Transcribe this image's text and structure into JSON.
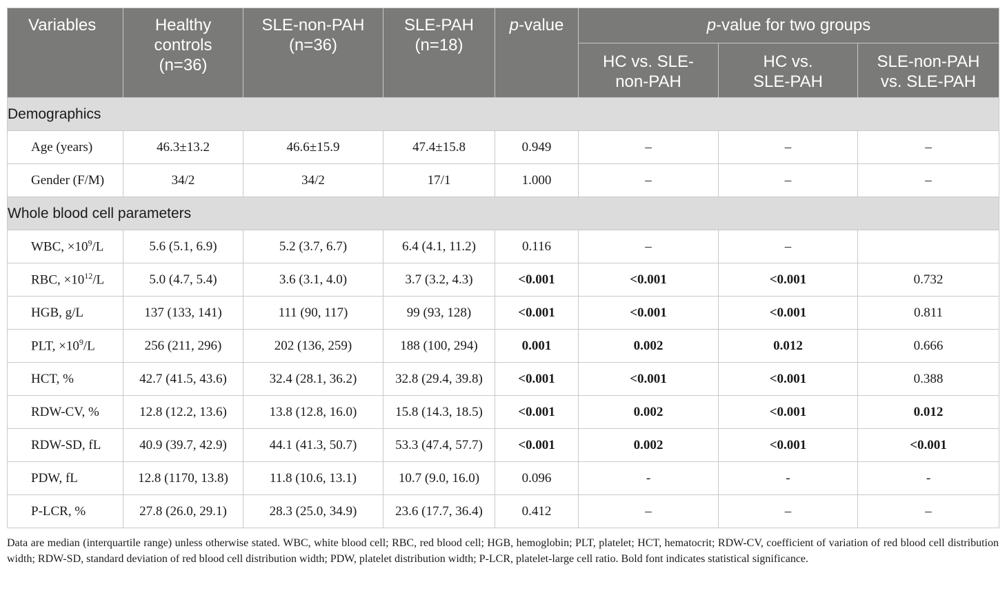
{
  "table": {
    "headers": {
      "variables": "Variables",
      "hc": "Healthy controls (n=36)",
      "non_pah": "SLE-non-PAH (n=36)",
      "pah": "SLE-PAH (n=18)",
      "p_italic": "p",
      "p_rest": "-value",
      "group_italic": "p",
      "group_rest": "-value for two groups",
      "sub1": "HC vs. SLE-non-PAH",
      "sub2": "HC vs. SLE-PAH",
      "sub3": "SLE-non-PAH vs. SLE-PAH"
    },
    "sections": [
      {
        "title": "Demographics",
        "rows": [
          {
            "label": "Age (years)",
            "hc": "46.3±13.2",
            "non_pah": "46.6±15.9",
            "pah": "47.4±15.8",
            "p": "0.949",
            "c1": "–",
            "c2": "–",
            "c3": "–"
          },
          {
            "label": "Gender (F/M)",
            "hc": "34/2",
            "non_pah": "34/2",
            "pah": "17/1",
            "p": "1.000",
            "c1": "–",
            "c2": "–",
            "c3": "–"
          }
        ]
      },
      {
        "title": "Whole blood cell parameters",
        "rows": [
          {
            "label_pre": "WBC, ×10",
            "label_sup": "9",
            "label_post": "/L",
            "hc": "5.6 (5.1, 6.9)",
            "non_pah": "5.2 (3.7, 6.7)",
            "pah": "6.4 (4.1, 11.2)",
            "p": "0.116",
            "c1": "–",
            "c2": "–",
            "c3": ""
          },
          {
            "label_pre": "RBC, ×10",
            "label_sup": "12",
            "label_post": "/L",
            "hc": "5.0 (4.7, 5.4)",
            "non_pah": "3.6 (3.1, 4.0)",
            "pah": "3.7 (3.2, 4.3)",
            "p": "<0.001",
            "c1": "<0.001",
            "c2": "<0.001",
            "c3": "0.732"
          },
          {
            "label": "HGB, g/L",
            "hc": "137 (133, 141)",
            "non_pah": "111 (90, 117)",
            "pah": "99 (93, 128)",
            "p": "<0.001",
            "c1": "<0.001",
            "c2": "<0.001",
            "c3": "0.811"
          },
          {
            "label_pre": "PLT, ×10",
            "label_sup": "9",
            "label_post": "/L",
            "hc": "256 (211, 296)",
            "non_pah": "202 (136, 259)",
            "pah": "188 (100, 294)",
            "p": "0.001",
            "c1": "0.002",
            "c2": "0.012",
            "c3": "0.666"
          },
          {
            "label": "HCT, %",
            "hc": "42.7 (41.5, 43.6)",
            "non_pah": "32.4 (28.1, 36.2)",
            "pah": "32.8 (29.4, 39.8)",
            "p": "<0.001",
            "c1": "<0.001",
            "c2": "<0.001",
            "c3": "0.388"
          },
          {
            "label": "RDW-CV, %",
            "hc": "12.8 (12.2, 13.6)",
            "non_pah": "13.8 (12.8, 16.0)",
            "pah": "15.8 (14.3, 18.5)",
            "p": "<0.001",
            "c1": "0.002",
            "c2": "<0.001",
            "c3": "0.012"
          },
          {
            "label": "RDW-SD, fL",
            "hc": "40.9 (39.7, 42.9)",
            "non_pah": "44.1 (41.3, 50.7)",
            "pah": "53.3 (47.4, 57.7)",
            "p": "<0.001",
            "c1": "0.002",
            "c2": "<0.001",
            "c3": "<0.001"
          },
          {
            "label": "PDW, fL",
            "hc": "12.8 (1170, 13.8)",
            "non_pah": "11.8 (10.6, 13.1)",
            "pah": "10.7 (9.0, 16.0)",
            "p": "0.096",
            "c1": "-",
            "c2": "-",
            "c3": "-"
          },
          {
            "label": "P-LCR, %",
            "hc": "27.8 (26.0, 29.1)",
            "non_pah": "28.3 (25.0, 34.9)",
            "pah": "23.6 (17.7, 36.4)",
            "p": "0.412",
            "c1": "–",
            "c2": "–",
            "c3": "–"
          }
        ]
      }
    ]
  },
  "footnote": "Data are median (interquartile range) unless otherwise stated. WBC, white blood cell; RBC, red blood cell; HGB, hemoglobin; PLT, platelet; HCT, hematocrit; RDW-CV, coefficient of variation of red blood cell distribution width; RDW-SD, standard deviation of red blood cell distribution width; PDW, platelet distribution width; P-LCR, platelet-large cell ratio. Bold font indicates statistical significance.",
  "colors": {
    "header_bg": "#7a7a78",
    "section_bg": "#dcdcdc",
    "grid": "#c9c9c9"
  }
}
